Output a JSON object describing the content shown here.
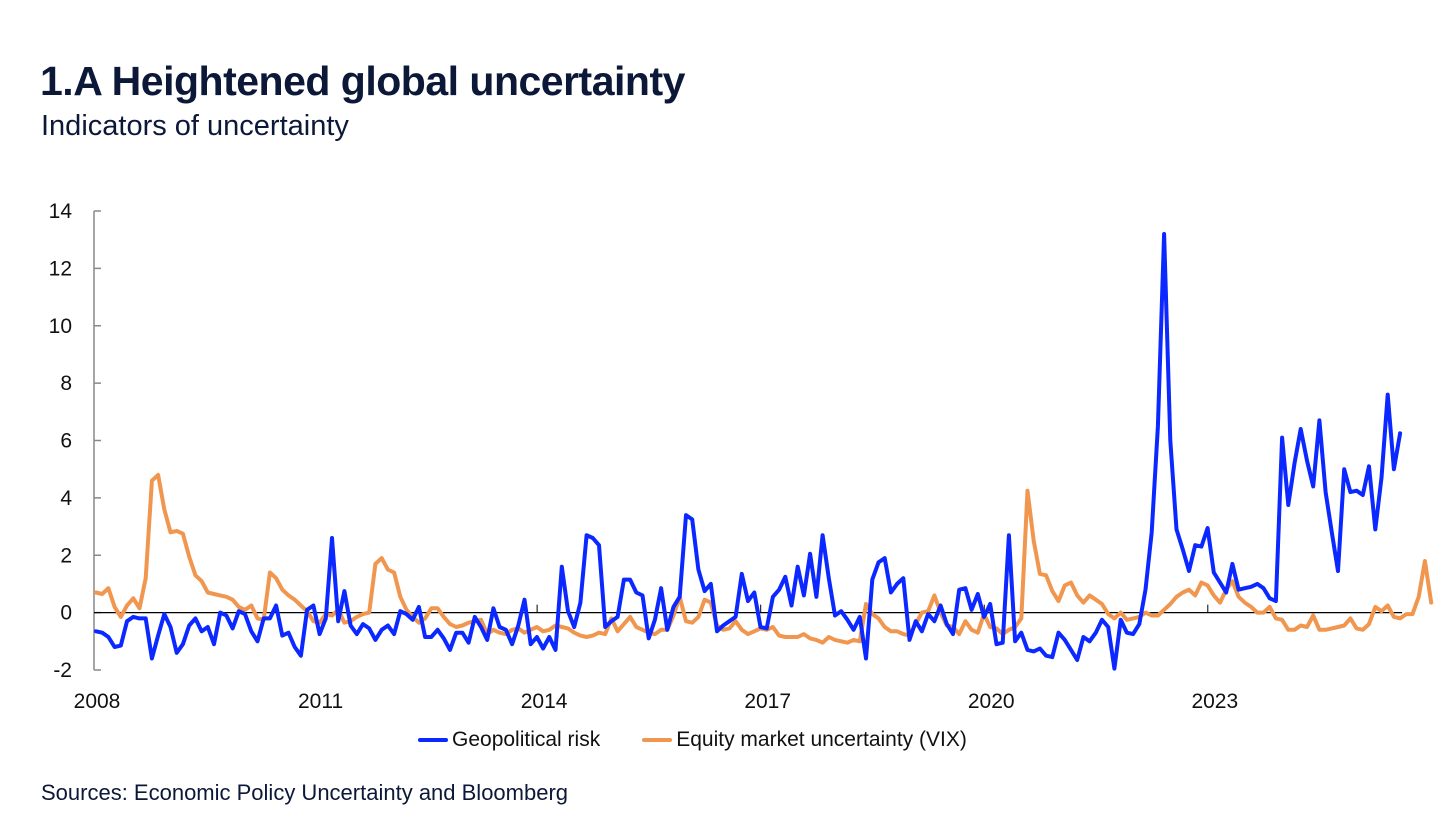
{
  "header": {
    "title": "1.A Heightened global uncertainty",
    "subtitle": "Indicators of uncertainty"
  },
  "footer": {
    "source": "Sources: Economic Policy Uncertainty and Bloomberg"
  },
  "colors": {
    "geopolitical": "#0a28ff",
    "vix": "#f0964f",
    "axis": "#888888",
    "zero_line": "#000000",
    "text": "#0c1838"
  },
  "chart_data": {
    "type": "line",
    "title": "1.A Heightened global uncertainty",
    "subtitle": "Indicators of uncertainty",
    "xlabel": "",
    "ylabel": "",
    "ylim": [
      -2,
      14
    ],
    "yticks": [
      -2,
      0,
      2,
      4,
      6,
      8,
      10,
      12,
      14
    ],
    "ytick_labels": [
      "-2",
      "0",
      "2",
      "4",
      "6",
      "8",
      "10",
      "12",
      "14"
    ],
    "xticks": [
      "2008",
      "2011",
      "2014",
      "2017",
      "2020",
      "2023"
    ],
    "x_start": "2008-01",
    "frequency": "monthly",
    "grid": false,
    "legend": "bottom-center",
    "series": [
      {
        "name": "Geopolitical risk",
        "color": "#0a28ff",
        "values": [
          -0.65,
          -0.7,
          -0.85,
          -1.2,
          -1.15,
          -0.3,
          -0.15,
          -0.2,
          -0.2,
          -1.6,
          -0.8,
          -0.05,
          -0.5,
          -1.4,
          -1.1,
          -0.45,
          -0.2,
          -0.65,
          -0.5,
          -1.1,
          0.0,
          -0.1,
          -0.55,
          0.05,
          -0.05,
          -0.65,
          -1.0,
          -0.2,
          -0.2,
          0.25,
          -0.8,
          -0.7,
          -1.2,
          -1.5,
          0.1,
          0.25,
          -0.75,
          -0.2,
          2.6,
          -0.3,
          0.75,
          -0.45,
          -0.75,
          -0.4,
          -0.55,
          -0.95,
          -0.6,
          -0.45,
          -0.75,
          0.05,
          -0.05,
          -0.25,
          0.2,
          -0.85,
          -0.85,
          -0.6,
          -0.9,
          -1.3,
          -0.7,
          -0.7,
          -1.05,
          -0.15,
          -0.5,
          -0.95,
          0.15,
          -0.5,
          -0.6,
          -1.1,
          -0.45,
          0.45,
          -1.1,
          -0.85,
          -1.25,
          -0.85,
          -1.3,
          1.6,
          0.05,
          -0.5,
          0.35,
          2.7,
          2.6,
          2.35,
          -0.5,
          -0.3,
          -0.15,
          1.15,
          1.15,
          0.7,
          0.6,
          -0.9,
          -0.25,
          0.85,
          -0.6,
          0.2,
          0.55,
          3.4,
          3.25,
          1.5,
          0.75,
          1.0,
          -0.65,
          -0.45,
          -0.3,
          -0.15,
          1.35,
          0.4,
          0.7,
          -0.5,
          -0.55,
          0.55,
          0.8,
          1.25,
          0.25,
          1.6,
          0.6,
          2.05,
          0.55,
          2.7,
          1.2,
          -0.1,
          0.05,
          -0.25,
          -0.6,
          -0.15,
          -1.6,
          1.15,
          1.75,
          1.9,
          0.7,
          1.0,
          1.2,
          -0.95,
          -0.3,
          -0.65,
          -0.05,
          -0.3,
          0.25,
          -0.4,
          -0.75,
          0.8,
          0.85,
          0.1,
          0.65,
          -0.15,
          0.3,
          -1.1,
          -1.05,
          2.7,
          -1.0,
          -0.7,
          -1.3,
          -1.35,
          -1.25,
          -1.5,
          -1.55,
          -0.7,
          -0.95,
          -1.3,
          -1.65,
          -0.85,
          -1.0,
          -0.7,
          -0.25,
          -0.5,
          -1.95,
          -0.25,
          -0.7,
          -0.75,
          -0.4,
          0.8,
          2.8,
          6.5,
          13.2,
          6.0,
          2.9,
          2.2,
          1.45,
          2.35,
          2.3,
          2.95,
          1.4,
          1.05,
          0.7,
          1.7,
          0.8,
          0.85,
          0.9,
          1.0,
          0.85,
          0.5,
          0.4,
          6.1,
          3.75,
          5.2,
          6.4,
          5.3,
          4.4,
          6.7,
          4.2,
          2.8,
          1.45,
          5.0,
          4.2,
          4.25,
          4.1,
          5.1,
          2.9,
          4.7,
          7.6,
          5.0,
          6.25
        ]
      },
      {
        "name": "Equity market uncertainty (VIX)",
        "color": "#f0964f",
        "values": [
          0.7,
          0.65,
          0.85,
          0.2,
          -0.15,
          0.25,
          0.5,
          0.15,
          1.2,
          4.6,
          4.8,
          3.6,
          2.8,
          2.85,
          2.75,
          1.95,
          1.3,
          1.1,
          0.7,
          0.65,
          0.6,
          0.55,
          0.45,
          0.2,
          0.1,
          0.25,
          -0.2,
          -0.25,
          1.4,
          1.2,
          0.8,
          0.6,
          0.45,
          0.25,
          0.05,
          -0.3,
          -0.35,
          -0.05,
          -0.1,
          0.1,
          -0.35,
          -0.3,
          -0.15,
          -0.05,
          0.0,
          1.7,
          1.9,
          1.5,
          1.4,
          0.55,
          0.1,
          -0.15,
          -0.35,
          -0.2,
          0.15,
          0.15,
          -0.15,
          -0.4,
          -0.5,
          -0.45,
          -0.35,
          -0.3,
          -0.25,
          -0.75,
          -0.6,
          -0.7,
          -0.75,
          -0.6,
          -0.55,
          -0.7,
          -0.6,
          -0.5,
          -0.65,
          -0.6,
          -0.45,
          -0.5,
          -0.55,
          -0.7,
          -0.8,
          -0.85,
          -0.8,
          -0.7,
          -0.75,
          -0.2,
          -0.65,
          -0.4,
          -0.15,
          -0.5,
          -0.6,
          -0.7,
          -0.75,
          -0.6,
          -0.6,
          -0.1,
          0.55,
          -0.3,
          -0.35,
          -0.15,
          0.45,
          0.35,
          -0.45,
          -0.6,
          -0.55,
          -0.3,
          -0.6,
          -0.75,
          -0.65,
          -0.55,
          -0.6,
          -0.5,
          -0.8,
          -0.85,
          -0.85,
          -0.85,
          -0.75,
          -0.9,
          -0.95,
          -1.05,
          -0.85,
          -0.95,
          -1.0,
          -1.05,
          -0.95,
          -1.0,
          0.3,
          -0.05,
          -0.2,
          -0.5,
          -0.65,
          -0.65,
          -0.75,
          -0.8,
          -0.4,
          0.0,
          0.05,
          0.6,
          0.0,
          -0.45,
          -0.5,
          -0.75,
          -0.3,
          -0.6,
          -0.7,
          -0.05,
          -0.5,
          -0.55,
          -0.75,
          -0.6,
          -0.5,
          -0.2,
          4.25,
          2.5,
          1.35,
          1.3,
          0.75,
          0.4,
          0.95,
          1.05,
          0.6,
          0.35,
          0.6,
          0.45,
          0.3,
          -0.05,
          -0.2,
          0.0,
          -0.25,
          -0.2,
          -0.15,
          0.0,
          -0.1,
          -0.1,
          0.1,
          0.3,
          0.55,
          0.7,
          0.8,
          0.6,
          1.05,
          0.95,
          0.6,
          0.35,
          0.8,
          1.1,
          0.55,
          0.35,
          0.2,
          0.0,
          0.0,
          0.2,
          -0.2,
          -0.25,
          -0.6,
          -0.6,
          -0.45,
          -0.5,
          -0.1,
          -0.6,
          -0.6,
          -0.55,
          -0.5,
          -0.45,
          -0.2,
          -0.55,
          -0.6,
          -0.4,
          0.2,
          0.05,
          0.25,
          -0.15,
          -0.2,
          -0.05,
          -0.05,
          0.55,
          1.8,
          0.35
        ]
      }
    ]
  }
}
